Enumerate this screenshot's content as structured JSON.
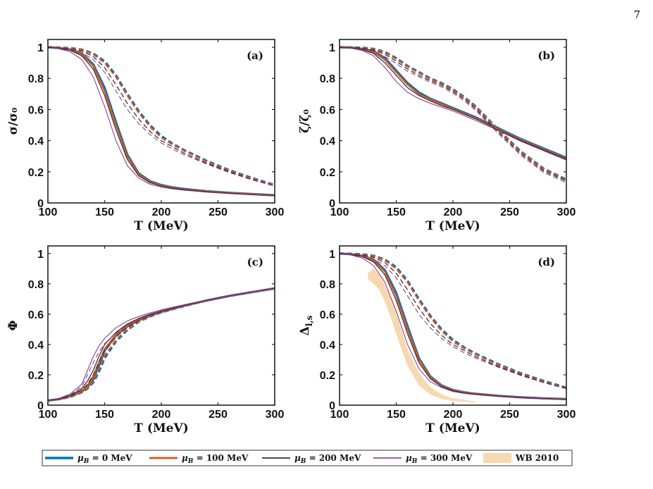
{
  "page_number": "7",
  "colors": {
    "mu0": "#0072BD",
    "mu100": "#D95319",
    "mu200": "#333333",
    "mu300": "#7E2F8E",
    "wb": "#F8D8B0"
  },
  "legend": {
    "placement": "bottom-center",
    "entries": [
      {
        "key": "mu0",
        "label": "μ_B = 0  MeV"
      },
      {
        "key": "mu100",
        "label": "μ_B = 100  MeV"
      },
      {
        "key": "mu200",
        "label": "μ_B = 200  MeV"
      },
      {
        "key": "mu300",
        "label": "μ_B = 300  MeV"
      },
      {
        "key": "wb",
        "label": "WB 2010"
      }
    ]
  },
  "chart_data": [
    {
      "panel": "(a)",
      "type": "line",
      "xlabel": "T (MeV)",
      "ylabel": "σ/σ₀",
      "xlim": [
        100,
        300
      ],
      "ylim": [
        0,
        1.05
      ],
      "xticks": [
        100,
        150,
        200,
        250,
        300
      ],
      "yticks": [
        0,
        0.2,
        0.4,
        0.6,
        0.8,
        1
      ],
      "yticklabels": [
        "0",
        "0.2",
        "0.4",
        "0.6",
        "0.8",
        "1"
      ],
      "x": [
        100,
        110,
        120,
        130,
        140,
        150,
        160,
        170,
        180,
        190,
        200,
        210,
        220,
        240,
        260,
        280,
        300
      ],
      "series": [
        {
          "key": "mu0",
          "style": "solid",
          "values": [
            1.0,
            0.995,
            0.985,
            0.96,
            0.89,
            0.74,
            0.52,
            0.31,
            0.19,
            0.14,
            0.115,
            0.1,
            0.09,
            0.075,
            0.065,
            0.057,
            0.05
          ]
        },
        {
          "key": "mu100",
          "style": "solid",
          "values": [
            1.0,
            0.995,
            0.983,
            0.955,
            0.88,
            0.72,
            0.5,
            0.3,
            0.185,
            0.135,
            0.112,
            0.098,
            0.088,
            0.074,
            0.064,
            0.056,
            0.049
          ]
        },
        {
          "key": "mu200",
          "style": "solid",
          "values": [
            1.0,
            0.993,
            0.98,
            0.945,
            0.86,
            0.69,
            0.47,
            0.28,
            0.175,
            0.13,
            0.108,
            0.095,
            0.086,
            0.072,
            0.062,
            0.054,
            0.047
          ]
        },
        {
          "key": "mu300",
          "style": "solid",
          "values": [
            1.0,
            0.99,
            0.97,
            0.92,
            0.81,
            0.62,
            0.4,
            0.24,
            0.16,
            0.12,
            0.102,
            0.09,
            0.082,
            0.069,
            0.06,
            0.052,
            0.045
          ]
        },
        {
          "key": "mu0",
          "style": "dashed",
          "values": [
            1.0,
            0.998,
            0.995,
            0.985,
            0.96,
            0.91,
            0.82,
            0.7,
            0.59,
            0.5,
            0.43,
            0.38,
            0.34,
            0.27,
            0.21,
            0.16,
            0.115
          ]
        },
        {
          "key": "mu100",
          "style": "dashed",
          "values": [
            1.0,
            0.998,
            0.994,
            0.983,
            0.955,
            0.9,
            0.81,
            0.69,
            0.58,
            0.49,
            0.42,
            0.375,
            0.335,
            0.265,
            0.205,
            0.155,
            0.112
          ]
        },
        {
          "key": "mu200",
          "style": "dashed",
          "values": [
            1.0,
            0.997,
            0.99,
            0.975,
            0.94,
            0.87,
            0.76,
            0.64,
            0.54,
            0.46,
            0.4,
            0.36,
            0.32,
            0.255,
            0.2,
            0.15,
            0.11
          ]
        },
        {
          "key": "mu300",
          "style": "dashed",
          "values": [
            1.0,
            0.996,
            0.987,
            0.965,
            0.92,
            0.84,
            0.72,
            0.6,
            0.51,
            0.44,
            0.385,
            0.345,
            0.31,
            0.25,
            0.195,
            0.148,
            0.108
          ]
        }
      ]
    },
    {
      "panel": "(b)",
      "type": "line",
      "xlabel": "T (MeV)",
      "ylabel": "ζ/ζ₀",
      "xlim": [
        100,
        300
      ],
      "ylim": [
        0,
        1.05
      ],
      "xticks": [
        100,
        150,
        200,
        250,
        300
      ],
      "yticks": [
        0,
        0.2,
        0.4,
        0.6,
        0.8,
        1
      ],
      "yticklabels": [
        "0",
        "0.2",
        "0.4",
        "0.6",
        "0.8",
        "1"
      ],
      "x": [
        100,
        110,
        120,
        130,
        140,
        150,
        160,
        170,
        180,
        190,
        200,
        210,
        220,
        240,
        260,
        280,
        300
      ],
      "series": [
        {
          "key": "mu0",
          "style": "solid",
          "values": [
            1.0,
            0.998,
            0.99,
            0.975,
            0.93,
            0.85,
            0.77,
            0.71,
            0.67,
            0.64,
            0.61,
            0.58,
            0.55,
            0.48,
            0.41,
            0.35,
            0.29
          ]
        },
        {
          "key": "mu100",
          "style": "solid",
          "values": [
            1.0,
            0.997,
            0.988,
            0.97,
            0.92,
            0.84,
            0.76,
            0.7,
            0.665,
            0.635,
            0.605,
            0.575,
            0.545,
            0.475,
            0.405,
            0.345,
            0.285
          ]
        },
        {
          "key": "mu200",
          "style": "solid",
          "values": [
            1.0,
            0.996,
            0.985,
            0.96,
            0.9,
            0.82,
            0.74,
            0.69,
            0.655,
            0.625,
            0.6,
            0.57,
            0.54,
            0.47,
            0.4,
            0.34,
            0.28
          ]
        },
        {
          "key": "mu300",
          "style": "solid",
          "values": [
            1.0,
            0.994,
            0.98,
            0.945,
            0.87,
            0.78,
            0.71,
            0.67,
            0.64,
            0.615,
            0.59,
            0.56,
            0.53,
            0.465,
            0.395,
            0.335,
            0.275
          ]
        },
        {
          "key": "mu0",
          "style": "dashed",
          "values": [
            1.0,
            0.999,
            0.997,
            0.99,
            0.97,
            0.93,
            0.88,
            0.84,
            0.8,
            0.77,
            0.73,
            0.68,
            0.62,
            0.47,
            0.33,
            0.22,
            0.15
          ]
        },
        {
          "key": "mu100",
          "style": "dashed",
          "values": [
            1.0,
            0.999,
            0.996,
            0.988,
            0.966,
            0.925,
            0.875,
            0.835,
            0.795,
            0.765,
            0.725,
            0.675,
            0.615,
            0.465,
            0.325,
            0.215,
            0.145
          ]
        },
        {
          "key": "mu200",
          "style": "dashed",
          "values": [
            1.0,
            0.998,
            0.994,
            0.982,
            0.955,
            0.91,
            0.86,
            0.82,
            0.785,
            0.755,
            0.715,
            0.665,
            0.605,
            0.455,
            0.315,
            0.205,
            0.14
          ]
        },
        {
          "key": "mu300",
          "style": "dashed",
          "values": [
            1.0,
            0.997,
            0.99,
            0.975,
            0.94,
            0.895,
            0.845,
            0.81,
            0.775,
            0.745,
            0.705,
            0.655,
            0.595,
            0.445,
            0.305,
            0.195,
            0.13
          ]
        }
      ]
    },
    {
      "panel": "(c)",
      "type": "line",
      "xlabel": "T (MeV)",
      "ylabel": "Φ",
      "xlim": [
        100,
        300
      ],
      "ylim": [
        0,
        1.05
      ],
      "xticks": [
        100,
        150,
        200,
        250,
        300
      ],
      "yticks": [
        0,
        0.2,
        0.4,
        0.6,
        0.8,
        1
      ],
      "yticklabels": [
        "0",
        "0.2",
        "0.4",
        "0.6",
        "0.8",
        "1"
      ],
      "x": [
        100,
        110,
        120,
        130,
        135,
        140,
        145,
        150,
        160,
        170,
        180,
        190,
        200,
        220,
        240,
        260,
        280,
        300
      ],
      "series": [
        {
          "key": "mu0",
          "style": "solid",
          "values": [
            0.03,
            0.04,
            0.06,
            0.09,
            0.12,
            0.17,
            0.26,
            0.36,
            0.46,
            0.52,
            0.56,
            0.59,
            0.615,
            0.655,
            0.69,
            0.72,
            0.745,
            0.77
          ]
        },
        {
          "key": "mu100",
          "style": "solid",
          "values": [
            0.03,
            0.04,
            0.06,
            0.095,
            0.13,
            0.19,
            0.28,
            0.37,
            0.465,
            0.525,
            0.565,
            0.595,
            0.618,
            0.656,
            0.69,
            0.72,
            0.745,
            0.77
          ]
        },
        {
          "key": "mu200",
          "style": "solid",
          "values": [
            0.03,
            0.042,
            0.065,
            0.11,
            0.16,
            0.23,
            0.32,
            0.4,
            0.48,
            0.535,
            0.572,
            0.6,
            0.622,
            0.658,
            0.692,
            0.721,
            0.746,
            0.77
          ]
        },
        {
          "key": "mu300",
          "style": "solid",
          "values": [
            0.03,
            0.045,
            0.075,
            0.14,
            0.23,
            0.32,
            0.39,
            0.44,
            0.51,
            0.555,
            0.585,
            0.608,
            0.628,
            0.662,
            0.694,
            0.722,
            0.747,
            0.77
          ]
        },
        {
          "key": "mu0",
          "style": "dashed",
          "values": [
            0.03,
            0.04,
            0.055,
            0.085,
            0.11,
            0.15,
            0.22,
            0.31,
            0.42,
            0.495,
            0.55,
            0.585,
            0.612,
            0.653,
            0.69,
            0.72,
            0.745,
            0.77
          ]
        },
        {
          "key": "mu100",
          "style": "dashed",
          "values": [
            0.03,
            0.04,
            0.056,
            0.088,
            0.115,
            0.16,
            0.235,
            0.325,
            0.43,
            0.5,
            0.553,
            0.587,
            0.614,
            0.654,
            0.69,
            0.72,
            0.745,
            0.77
          ]
        },
        {
          "key": "mu200",
          "style": "dashed",
          "values": [
            0.03,
            0.041,
            0.06,
            0.1,
            0.14,
            0.2,
            0.285,
            0.36,
            0.45,
            0.512,
            0.56,
            0.592,
            0.617,
            0.656,
            0.691,
            0.721,
            0.746,
            0.77
          ]
        },
        {
          "key": "mu300",
          "style": "dashed",
          "values": [
            0.03,
            0.043,
            0.068,
            0.125,
            0.2,
            0.28,
            0.35,
            0.405,
            0.475,
            0.53,
            0.57,
            0.598,
            0.62,
            0.658,
            0.692,
            0.721,
            0.746,
            0.77
          ]
        }
      ]
    },
    {
      "panel": "(d)",
      "type": "line",
      "xlabel": "T (MeV)",
      "ylabel": "Δ_{l,s}",
      "xlim": [
        100,
        300
      ],
      "ylim": [
        0,
        1.05
      ],
      "xticks": [
        100,
        150,
        200,
        250,
        300
      ],
      "yticks": [
        0,
        0.2,
        0.4,
        0.6,
        0.8,
        1
      ],
      "yticklabels": [
        "0",
        "0.2",
        "0.4",
        "0.6",
        "0.8",
        "1"
      ],
      "x": [
        100,
        110,
        120,
        130,
        140,
        150,
        160,
        170,
        180,
        190,
        200,
        210,
        220,
        240,
        260,
        280,
        300
      ],
      "series": [
        {
          "key": "mu0",
          "style": "solid",
          "values": [
            1.0,
            0.995,
            0.985,
            0.96,
            0.89,
            0.74,
            0.52,
            0.31,
            0.19,
            0.13,
            0.1,
            0.085,
            0.075,
            0.062,
            0.052,
            0.045,
            0.04
          ]
        },
        {
          "key": "mu100",
          "style": "solid",
          "values": [
            1.0,
            0.995,
            0.983,
            0.955,
            0.88,
            0.72,
            0.5,
            0.3,
            0.185,
            0.127,
            0.098,
            0.083,
            0.074,
            0.061,
            0.051,
            0.044,
            0.039
          ]
        },
        {
          "key": "mu200",
          "style": "solid",
          "values": [
            1.0,
            0.993,
            0.98,
            0.945,
            0.86,
            0.69,
            0.47,
            0.28,
            0.175,
            0.122,
            0.095,
            0.08,
            0.072,
            0.059,
            0.05,
            0.043,
            0.038
          ]
        },
        {
          "key": "mu300",
          "style": "solid",
          "values": [
            1.0,
            0.99,
            0.97,
            0.92,
            0.81,
            0.62,
            0.4,
            0.24,
            0.155,
            0.115,
            0.09,
            0.077,
            0.069,
            0.057,
            0.048,
            0.042,
            0.037
          ]
        },
        {
          "key": "mu0",
          "style": "dashed",
          "values": [
            1.0,
            0.998,
            0.995,
            0.985,
            0.96,
            0.91,
            0.82,
            0.7,
            0.59,
            0.5,
            0.43,
            0.38,
            0.34,
            0.27,
            0.21,
            0.16,
            0.115
          ]
        },
        {
          "key": "mu100",
          "style": "dashed",
          "values": [
            1.0,
            0.998,
            0.994,
            0.983,
            0.955,
            0.9,
            0.81,
            0.69,
            0.58,
            0.49,
            0.42,
            0.375,
            0.335,
            0.265,
            0.205,
            0.155,
            0.112
          ]
        },
        {
          "key": "mu200",
          "style": "dashed",
          "values": [
            1.0,
            0.997,
            0.99,
            0.975,
            0.94,
            0.87,
            0.76,
            0.64,
            0.54,
            0.46,
            0.4,
            0.36,
            0.32,
            0.255,
            0.2,
            0.15,
            0.11
          ]
        },
        {
          "key": "mu300",
          "style": "dashed",
          "values": [
            1.0,
            0.996,
            0.987,
            0.965,
            0.92,
            0.84,
            0.72,
            0.6,
            0.51,
            0.44,
            0.385,
            0.345,
            0.31,
            0.25,
            0.195,
            0.148,
            0.108
          ]
        }
      ],
      "band": {
        "key": "wb",
        "x": [
          125,
          130,
          135,
          140,
          145,
          150,
          155,
          160,
          170,
          180,
          190,
          200,
          210,
          220
        ],
        "upper": [
          0.87,
          0.9,
          0.86,
          0.79,
          0.71,
          0.61,
          0.49,
          0.37,
          0.21,
          0.12,
          0.07,
          0.045,
          0.035,
          0.025
        ],
        "lower": [
          0.83,
          0.8,
          0.76,
          0.68,
          0.58,
          0.47,
          0.36,
          0.26,
          0.13,
          0.07,
          0.04,
          0.028,
          0.022,
          0.018
        ]
      }
    }
  ]
}
